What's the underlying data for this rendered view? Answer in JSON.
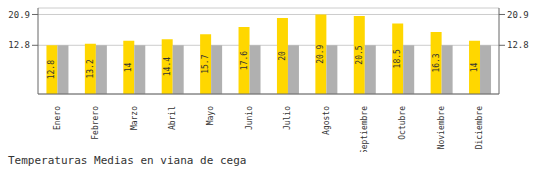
{
  "chart_data": {
    "type": "bar",
    "title": "Temperaturas Medias en viana de cega",
    "categories": [
      "Enero",
      "Febrero",
      "Marzo",
      "Abril",
      "Mayo",
      "Junio",
      "Julio",
      "Agosto",
      "Septiembre",
      "Octubre",
      "Noviembre",
      "Diciembre"
    ],
    "series": [
      {
        "color": "#FFD700",
        "data_labels": true,
        "values": [
          12.8,
          13.2,
          14.0,
          14.4,
          15.7,
          17.6,
          20.0,
          20.9,
          20.5,
          18.5,
          16.3,
          14.0
        ]
      },
      {
        "color": "#B0B0B0",
        "values": [
          12.8,
          12.8,
          12.8,
          12.8,
          12.8,
          12.8,
          12.8,
          12.8,
          12.8,
          12.8,
          12.8,
          12.8
        ]
      }
    ],
    "ylim": [
      0,
      22.6
    ],
    "yticks": [
      12.8,
      20.9
    ],
    "y2lim": [
      0,
      22.6
    ],
    "y2ticks": [
      12.8,
      20.9
    ],
    "grid": true
  }
}
